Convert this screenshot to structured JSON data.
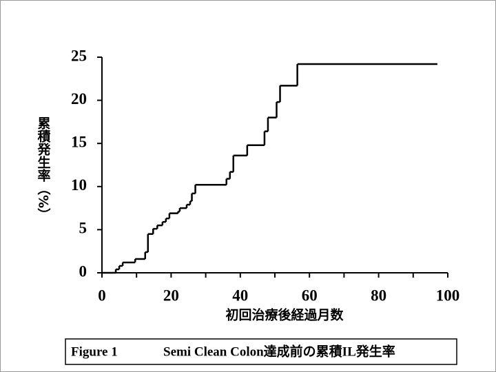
{
  "chart_data": {
    "type": "step",
    "y_label": "累積発生率（%）",
    "x_label": "初回治療後経過月数",
    "caption_label": "Figure 1",
    "caption_text": "Semi Clean Colon達成前の累積IL発生率",
    "color": "#000000",
    "x": [
      0,
      4,
      5,
      6,
      9.6,
      12.5,
      13.3,
      14.8,
      16,
      17.5,
      18.5,
      19.5,
      22,
      22.5,
      24.5,
      25.5,
      26,
      27,
      36,
      37,
      38,
      42,
      47,
      48,
      50.5,
      51.5,
      56.5,
      97
    ],
    "values": [
      0,
      0.4,
      0.8,
      1.2,
      1.6,
      2.4,
      4.5,
      5.1,
      5.5,
      5.9,
      6.3,
      6.9,
      7.1,
      7.5,
      7.9,
      8.3,
      9.2,
      10.2,
      10.9,
      11.7,
      13.6,
      14.8,
      16.4,
      18.0,
      19.8,
      21.7,
      24.2,
      24.2
    ],
    "xlim": [
      0,
      100
    ],
    "xticks": [
      0,
      20,
      40,
      60,
      80,
      100
    ],
    "xminorticks": [
      10,
      30,
      50,
      70,
      90
    ],
    "ylim": [
      0,
      25
    ],
    "yticks": [
      0,
      5,
      10,
      15,
      20,
      25
    ]
  }
}
